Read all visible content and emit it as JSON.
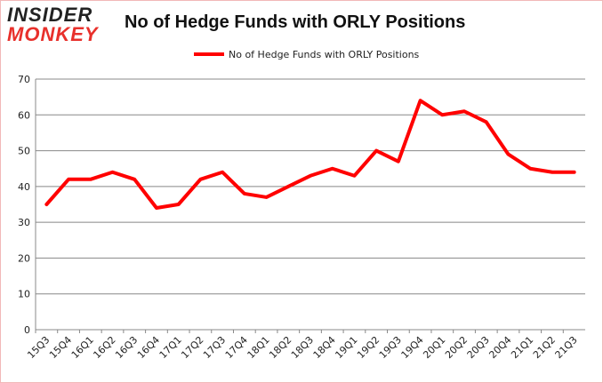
{
  "logo": {
    "line1": "INSIDER",
    "line2": "MONKEY"
  },
  "chart_data": {
    "type": "line",
    "title": "No of Hedge Funds with ORLY Positions",
    "xlabel": "",
    "ylabel": "",
    "ylim": [
      0,
      70
    ],
    "yticks": [
      0,
      10,
      20,
      30,
      40,
      50,
      60,
      70
    ],
    "grid": true,
    "legend_position": "top",
    "categories": [
      "15Q3",
      "15Q4",
      "16Q1",
      "16Q2",
      "16Q3",
      "16Q4",
      "17Q1",
      "17Q2",
      "17Q3",
      "17Q4",
      "18Q1",
      "18Q2",
      "18Q3",
      "18Q4",
      "19Q1",
      "19Q2",
      "19Q3",
      "19Q4",
      "20Q1",
      "20Q2",
      "20Q3",
      "20Q4",
      "21Q1",
      "21Q2",
      "21Q3"
    ],
    "series": [
      {
        "name": "No of Hedge Funds with ORLY Positions",
        "color": "#ff0000",
        "values": [
          35,
          42,
          42,
          44,
          42,
          34,
          35,
          42,
          44,
          38,
          37,
          40,
          43,
          45,
          43,
          50,
          47,
          64,
          60,
          61,
          58,
          49,
          45,
          44,
          44
        ]
      }
    ]
  }
}
